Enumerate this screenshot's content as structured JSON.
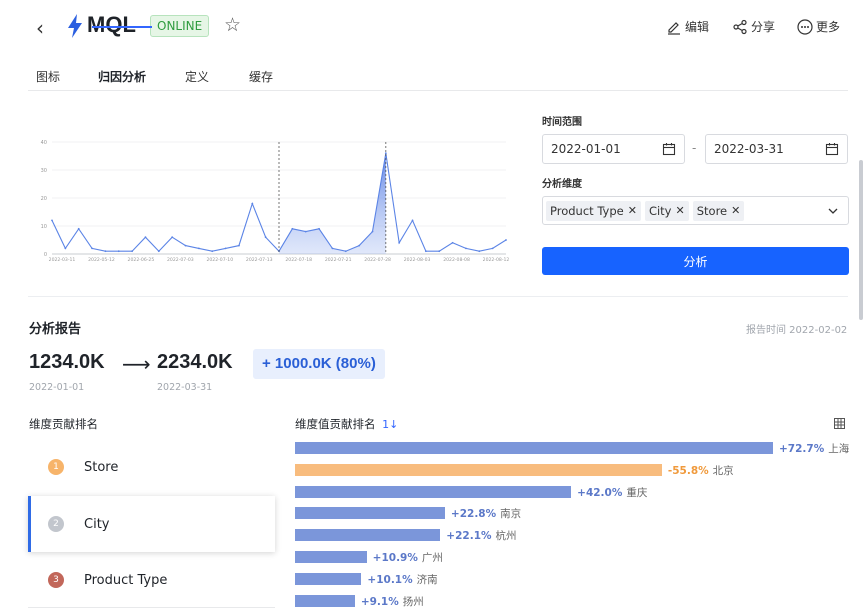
{
  "header": {
    "back_glyph": "‹",
    "title": "MQL",
    "status": "ONLINE",
    "actions": [
      {
        "label": "编辑",
        "icon": "edit-icon"
      },
      {
        "label": "分享",
        "icon": "share-icon"
      },
      {
        "label": "更多",
        "icon": "more-icon"
      }
    ]
  },
  "tabs": [
    {
      "label": "图标",
      "active": false
    },
    {
      "label": "归因分析",
      "active": true
    },
    {
      "label": "定义",
      "active": false
    },
    {
      "label": "缓存",
      "active": false
    }
  ],
  "form": {
    "time_range_label": "时间范围",
    "start_date": "2022-01-01",
    "date_separator": "-",
    "end_date": "2022-03-31",
    "dimension_label": "分析维度",
    "dimensions": [
      "Product Type",
      "City",
      "Store"
    ],
    "analyze_button": "分析"
  },
  "chart_data": {
    "type": "area",
    "title": "",
    "ylim": [
      0,
      40
    ],
    "y_ticks": [
      "0",
      "10",
      "20",
      "30",
      "40"
    ],
    "x_tick_labels": [
      "2022-03-11",
      "2022-05-12",
      "2022-06-25",
      "2022-07-03",
      "2022-07-10",
      "2022-07-13",
      "2022-07-18",
      "2022-07-21",
      "2022-07-28",
      "2022-08-03",
      "2022-08-08",
      "2022-08-12"
    ],
    "values": [
      12,
      2,
      9,
      2,
      1,
      1,
      1,
      6,
      1,
      6,
      3,
      2,
      1,
      2,
      3,
      18,
      6,
      1,
      9,
      8,
      9,
      2,
      1,
      3,
      8,
      36,
      4,
      12,
      1,
      1,
      4,
      2,
      1,
      2,
      5
    ],
    "highlight_range": [
      17,
      25
    ],
    "markers": [
      17,
      25
    ]
  },
  "report": {
    "title": "分析报告",
    "report_time": "报告时间 2022-02-02",
    "from_value": "1234.0K",
    "arrow": "⟶",
    "to_value": "2234.0K",
    "delta": "+ 1000.0K (80%)",
    "from_date": "2022-01-01",
    "to_date": "2022-03-31"
  },
  "dimension_ranking": {
    "title": "维度贡献排名",
    "items": [
      {
        "rank": "1",
        "name": "Store",
        "color": "#f7b46a"
      },
      {
        "rank": "2",
        "name": "City",
        "color": "#c2c6cd"
      },
      {
        "rank": "3",
        "name": "Product Type",
        "color": "#c2675a"
      }
    ],
    "selected_index": 1
  },
  "value_ranking": {
    "title": "维度值贡献排名",
    "sort_glyph": "1↓",
    "colors": {
      "positive": "#7b96da",
      "negative": "#f8bc7e",
      "positive_text": "#5b78c8",
      "negative_text": "#f09a3c"
    },
    "items": [
      {
        "pct": "+72.7%",
        "city": "上海",
        "value": 72.7
      },
      {
        "pct": "-55.8%",
        "city": "北京",
        "value": -55.8
      },
      {
        "pct": "+42.0%",
        "city": "重庆",
        "value": 42.0
      },
      {
        "pct": "+22.8%",
        "city": "南京",
        "value": 22.8
      },
      {
        "pct": "+22.1%",
        "city": "杭州",
        "value": 22.1
      },
      {
        "pct": "+10.9%",
        "city": "广州",
        "value": 10.9
      },
      {
        "pct": "+10.1%",
        "city": "济南",
        "value": 10.1
      },
      {
        "pct": "+9.1%",
        "city": "扬州",
        "value": 9.1
      }
    ]
  }
}
